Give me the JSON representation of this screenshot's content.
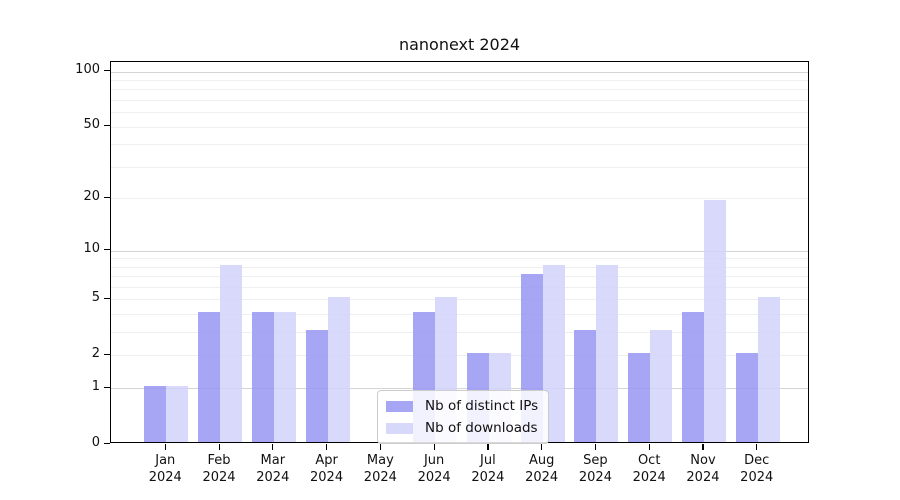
{
  "chart_data": {
    "type": "bar",
    "title": "nanonext 2024",
    "year_label": "2024",
    "categories": [
      "Jan",
      "Feb",
      "Mar",
      "Apr",
      "May",
      "Jun",
      "Jul",
      "Aug",
      "Sep",
      "Oct",
      "Nov",
      "Dec"
    ],
    "series": [
      {
        "name": "Nb of distinct IPs",
        "color": "rgba(150,150,243,0.85)",
        "legend_color": "#a6a6f4",
        "values": [
          1,
          4,
          4,
          3,
          0,
          4,
          2,
          7,
          3,
          2,
          4,
          2
        ]
      },
      {
        "name": "Nb of downloads",
        "color": "rgba(210,210,250,0.85)",
        "legend_color": "#d8d8fa",
        "values": [
          1,
          8,
          4,
          5,
          0,
          5,
          2,
          8,
          8,
          3,
          19,
          5
        ]
      }
    ],
    "xlabel": "",
    "ylabel": "",
    "yscale": "log1p",
    "ylim": [
      0,
      100
    ],
    "yticks": [
      0,
      1,
      2,
      5,
      10,
      20,
      50,
      100
    ],
    "major_gridlines": [
      1,
      10,
      100
    ],
    "minor_gridlines": [
      2,
      3,
      4,
      5,
      6,
      7,
      8,
      9,
      20,
      30,
      40,
      50,
      60,
      70,
      80,
      90
    ],
    "grid_on": true,
    "legend_position": "lower center",
    "colors": {
      "major_grid": "#d4d4d4",
      "minor_grid": "#efefef",
      "axis": "#000000",
      "background": "#ffffff"
    }
  }
}
